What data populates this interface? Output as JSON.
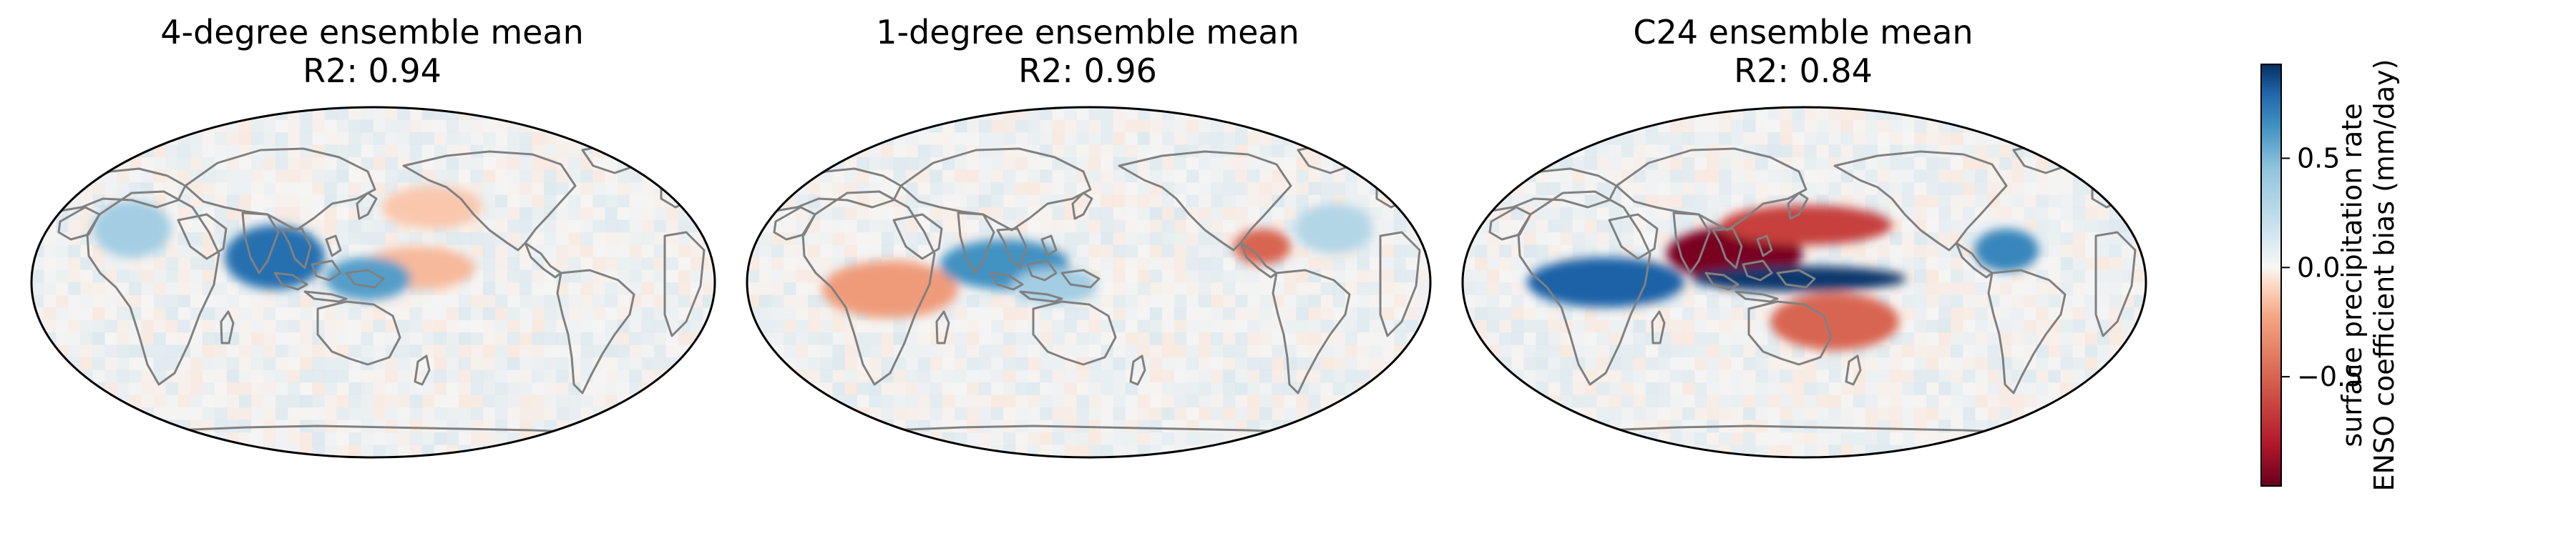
{
  "chart_data": [
    {
      "type": "heatmap",
      "title": "4-degree ensemble mean",
      "subtitle": "R2: 0.94",
      "projection": "Robinson",
      "central_longitude": 180,
      "features": [
        {
          "region": "Maritime Continent / western Pacific warm pool",
          "bias": 0.7
        },
        {
          "region": "Indian Ocean east of Africa",
          "bias": 0.3
        },
        {
          "region": "central equatorial Pacific",
          "bias": -0.35
        },
        {
          "region": "South Pacific Convergence Zone",
          "bias": 0.5
        },
        {
          "region": "North Pacific",
          "bias": -0.3
        }
      ]
    },
    {
      "type": "heatmap",
      "title": "1-degree ensemble mean",
      "subtitle": "R2: 0.96",
      "projection": "Robinson",
      "central_longitude": 180,
      "features": [
        {
          "region": "southwestern Indian Ocean",
          "bias": -0.45
        },
        {
          "region": "eastern equatorial Indian Ocean / Maritime Continent",
          "bias": 0.55
        },
        {
          "region": "Central America / Caribbean",
          "bias": -0.6
        },
        {
          "region": "South Pacific Convergence Zone",
          "bias": 0.3
        },
        {
          "region": "tropical Atlantic",
          "bias": 0.25
        }
      ]
    },
    {
      "type": "heatmap",
      "title": "C24 ensemble mean",
      "subtitle": "R2: 0.84",
      "projection": "Robinson",
      "central_longitude": 180,
      "features": [
        {
          "region": "Maritime Continent / western Pacific",
          "bias": -0.95
        },
        {
          "region": "equatorial central Pacific",
          "bias": 0.9
        },
        {
          "region": "northern tropical Pacific",
          "bias": -0.7
        },
        {
          "region": "Indian Ocean",
          "bias": 0.75
        },
        {
          "region": "South Pacific",
          "bias": -0.6
        },
        {
          "region": "Central America",
          "bias": 0.6
        }
      ]
    }
  ],
  "colorbar": {
    "colormap": "RdBu",
    "vmin": -1.0,
    "vmax": 0.93,
    "ticks": [
      -0.5,
      0.0,
      0.5
    ],
    "tick_labels": [
      "−0.5",
      "0.0",
      "0.5"
    ],
    "label_line1": "surface precipitation rate",
    "label_line2": "ENSO coefficient bias (mm/day)"
  },
  "colors": {
    "coastline": "#808080",
    "map_border": "#000000",
    "negative_strong": "#67001f",
    "neutral": "#f7f7f7",
    "positive_strong": "#053061"
  }
}
